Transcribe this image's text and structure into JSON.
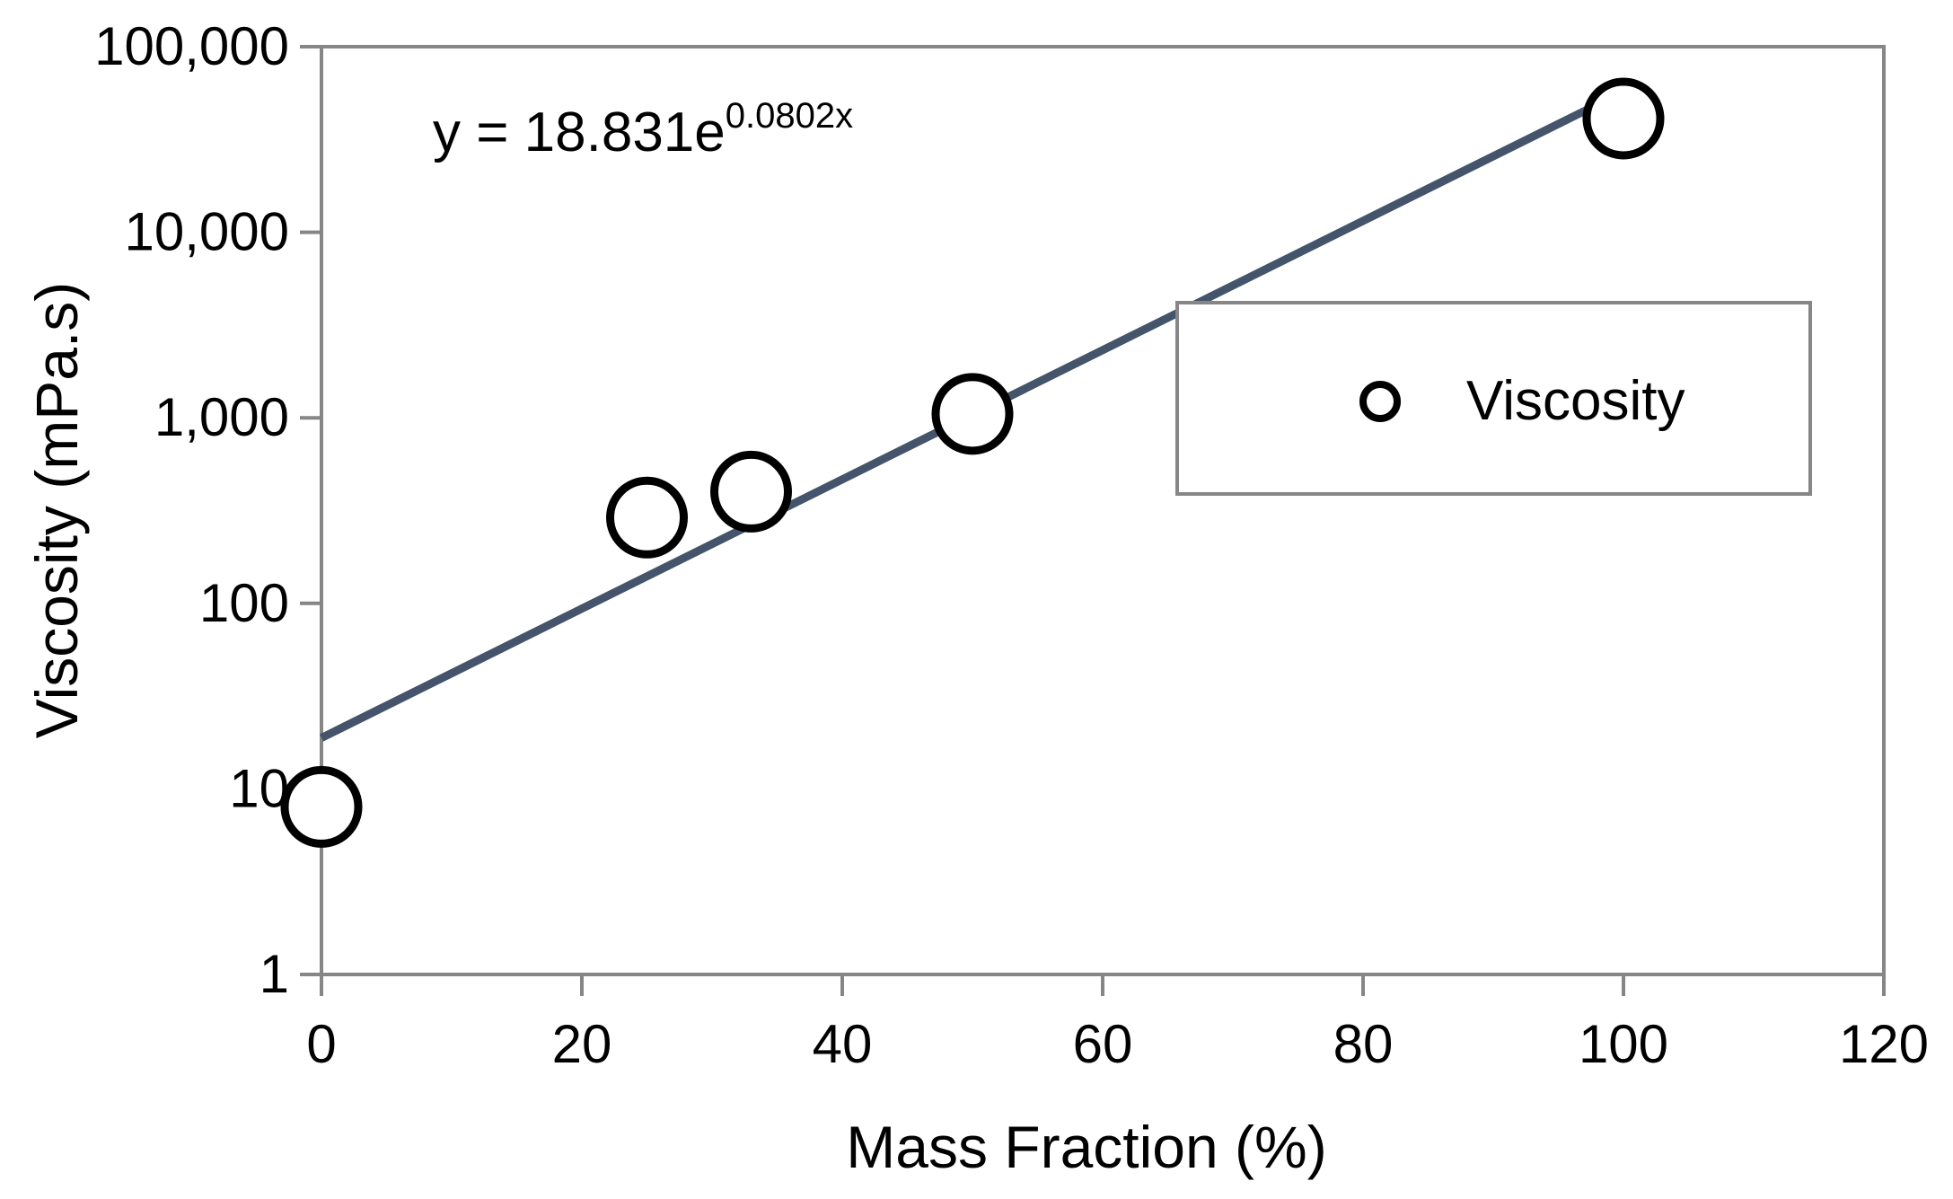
{
  "chart_data": {
    "type": "scatter",
    "title": "",
    "xlabel": "Mass Fraction (%)",
    "ylabel": "Viscosity (mPa.s)",
    "xlim": [
      0,
      120
    ],
    "ylim": [
      1,
      100000
    ],
    "yscale": "log",
    "x_ticks": [
      0,
      20,
      40,
      60,
      80,
      100,
      120
    ],
    "x_tick_labels": [
      "0",
      "20",
      "40",
      "60",
      "80",
      "100",
      "120"
    ],
    "y_ticks": [
      1,
      10,
      100,
      1000,
      10000,
      100000
    ],
    "y_tick_labels": [
      "1",
      "10",
      "100",
      "1,000",
      "10,000",
      "100,000"
    ],
    "grid": false,
    "legend_position": "right",
    "series": [
      {
        "name": "Viscosity",
        "marker": "open-circle",
        "points": [
          {
            "x": 0,
            "y": 8
          },
          {
            "x": 25,
            "y": 290
          },
          {
            "x": 33,
            "y": 400
          },
          {
            "x": 50,
            "y": 1050
          },
          {
            "x": 100,
            "y": 41000
          }
        ]
      }
    ],
    "trendline": {
      "type": "exponential",
      "a": 18.831,
      "b": 0.0802,
      "x_range": [
        0,
        100
      ],
      "color": "#44546a",
      "equation_main": "y = 18.831e",
      "equation_exponent": "0.0802x"
    },
    "legend": {
      "entries": [
        "Viscosity"
      ]
    }
  }
}
